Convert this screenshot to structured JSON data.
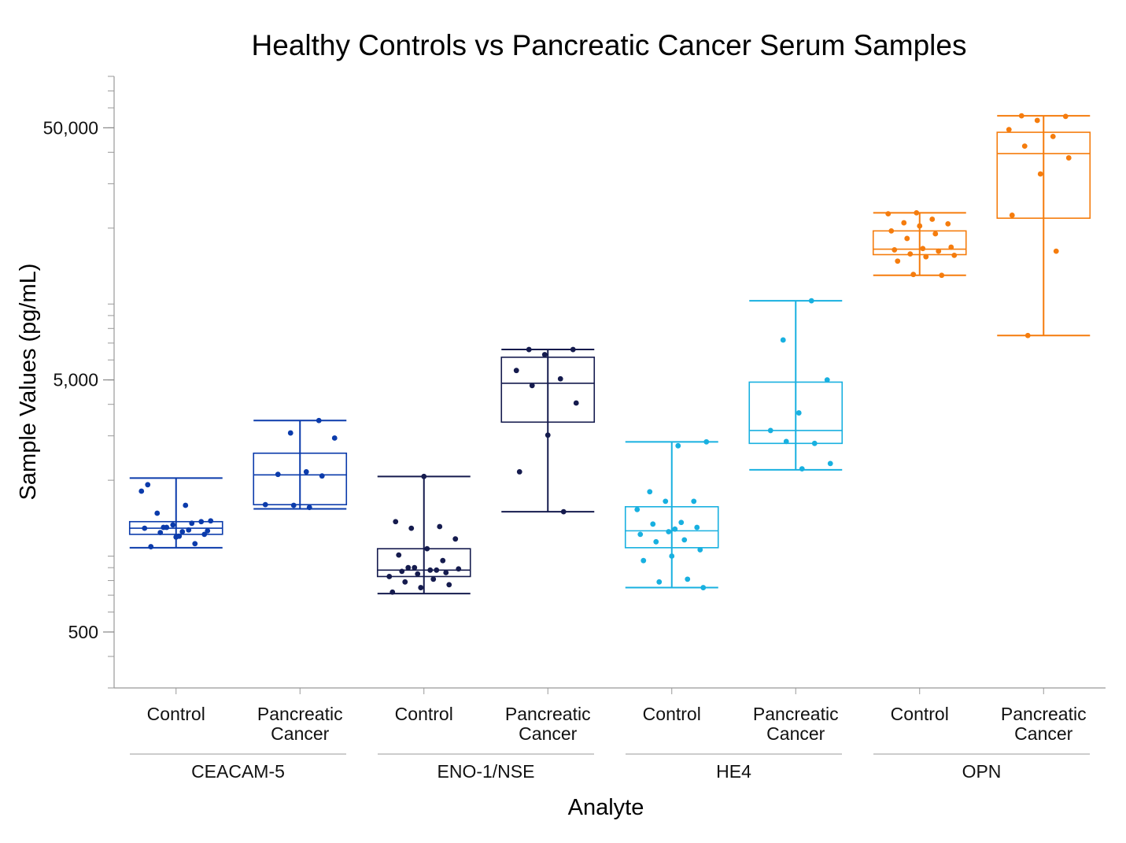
{
  "chart_data": {
    "type": "box",
    "title": "Healthy Controls vs Pancreatic Cancer Serum Samples",
    "xlabel": "Analyte",
    "ylabel": "Sample Values (pg/mL)",
    "yscale": "log",
    "ylim": [
      300,
      80000
    ],
    "y_ticks": [
      {
        "value": 500,
        "label": "500"
      },
      {
        "value": 5000,
        "label": "5,000"
      },
      {
        "value": 50000,
        "label": "50,000"
      }
    ],
    "groups": [
      {
        "analyte": "CEACAM-5",
        "color": "#0b3bab",
        "conditions": [
          {
            "label": [
              "Control"
            ],
            "whisker_low": 1080,
            "q1": 1220,
            "median": 1290,
            "q3": 1370,
            "whisker_high": 2040,
            "points": [
              1810,
              1590,
              1480,
              1370,
              1330,
              1290,
              1270,
              1240,
              1220,
              1190,
              1920,
              1350,
              1300,
              1260,
              1200,
              1090,
              1120,
              1300,
              1380,
              1250
            ]
          },
          {
            "label": [
              "Pancreatic",
              "Cancer"
            ],
            "whisker_low": 1540,
            "q1": 1600,
            "median": 2100,
            "q3": 2560,
            "whisker_high": 3450,
            "points": [
              3450,
              3080,
              2940,
              2160,
              2110,
              2080,
              1590,
              1600,
              1560
            ]
          }
        ]
      },
      {
        "analyte": "ENO-1/NSE",
        "color": "#151b4e",
        "conditions": [
          {
            "label": [
              "Control"
            ],
            "whisker_low": 710,
            "q1": 830,
            "median": 880,
            "q3": 1070,
            "whisker_high": 2070,
            "points": [
              2070,
              1370,
              1310,
              1290,
              1170,
              1070,
              1010,
              960,
              900,
              890,
              880,
              870,
              860,
              850,
              830,
              810,
              790,
              770,
              750,
              720,
              880,
              900
            ]
          },
          {
            "label": [
              "Pancreatic",
              "Cancer"
            ],
            "whisker_low": 1500,
            "q1": 3400,
            "median": 4850,
            "q3": 6150,
            "whisker_high": 6600,
            "points": [
              6600,
              6600,
              6300,
              5450,
              5050,
              4750,
              4050,
              3020,
              2160,
              1500
            ]
          }
        ]
      },
      {
        "analyte": "HE4",
        "color": "#18b0e0",
        "conditions": [
          {
            "label": [
              "Control"
            ],
            "whisker_low": 750,
            "q1": 1080,
            "median": 1260,
            "q3": 1570,
            "whisker_high": 2840,
            "points": [
              2840,
              2740,
              1800,
              1650,
              1650,
              1530,
              1360,
              1340,
              1300,
              1250,
              1220,
              1160,
              1140,
              1060,
              1000,
              960,
              810,
              790,
              750,
              1280
            ]
          },
          {
            "label": [
              "Pancreatic",
              "Cancer"
            ],
            "whisker_low": 2200,
            "q1": 2800,
            "median": 3150,
            "q3": 4900,
            "whisker_high": 10300,
            "points": [
              10300,
              7200,
              5000,
              3700,
              3150,
              2800,
              2850,
              2330,
              2220
            ]
          }
        ]
      },
      {
        "analyte": "OPN",
        "color": "#f57c0d",
        "conditions": [
          {
            "label": [
              "Control"
            ],
            "whisker_low": 13000,
            "q1": 15700,
            "median": 16500,
            "q3": 19500,
            "whisker_high": 23000,
            "points": [
              23000,
              22800,
              21700,
              21000,
              20800,
              20400,
              19500,
              19000,
              18200,
              16800,
              16600,
              16400,
              16200,
              15800,
              15600,
              15400,
              14800,
              13000,
              13100
            ]
          },
          {
            "label": [
              "Pancreatic",
              "Cancer"
            ],
            "whisker_low": 7500,
            "q1": 21900,
            "median": 39500,
            "q3": 48000,
            "whisker_high": 55800,
            "points": [
              55800,
              55500,
              53500,
              49200,
              46200,
              42300,
              38000,
              32800,
              22500,
              16200,
              7500
            ]
          }
        ]
      }
    ]
  }
}
